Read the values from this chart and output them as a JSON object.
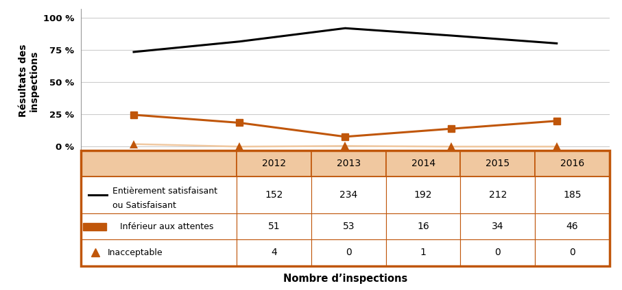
{
  "years": [
    "2012",
    "2013",
    "2014",
    "2015",
    "2016"
  ],
  "satisfaisant_counts": [
    152,
    234,
    192,
    212,
    185
  ],
  "inferieur_counts": [
    51,
    53,
    16,
    34,
    46
  ],
  "inacceptable_counts": [
    4,
    0,
    1,
    0,
    0
  ],
  "satisfaisant_pct": [
    73.43,
    81.53,
    91.87,
    86.18,
    80.09
  ],
  "inferieur_pct": [
    24.64,
    18.47,
    7.66,
    13.82,
    19.91
  ],
  "inacceptable_pct": [
    1.93,
    0.0,
    0.48,
    0.0,
    0.0
  ],
  "line_black_color": "#000000",
  "line_orange_color": "#C0560A",
  "line_peach_color": "#F0C8A0",
  "table_header_bg": "#F0C8A0",
  "table_border_color": "#C0560A",
  "ylabel": "Résultats des\ninspections",
  "xlabel": "Nombre d’inspections",
  "yticks": [
    0,
    25,
    50,
    75,
    100
  ],
  "ytick_labels": [
    "0 %",
    "25 %",
    "50 %",
    "75 %",
    "100 %"
  ],
  "legend_satisfaisant": "Entièrement satisfaisant\nou Satisfaisant",
  "legend_inferieur": "Inférieur aux attentes",
  "legend_inacceptable": "Inacceptable",
  "chart_bg": "#FFFFFF",
  "grid_color": "#CCCCCC",
  "fig_border_color": "#AAAAAA"
}
